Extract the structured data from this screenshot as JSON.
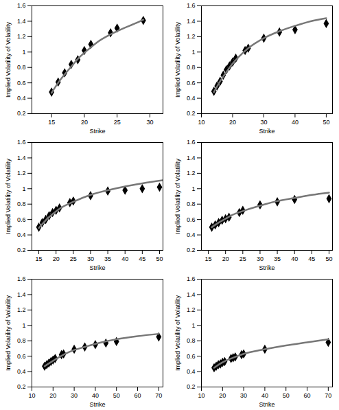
{
  "chart_data": [
    {
      "type": "scatter",
      "x_label": "Strike",
      "y_label": "Implied Volatility of Volatility",
      "xlim": [
        12,
        32
      ],
      "xticks": [
        15,
        20,
        25,
        30
      ],
      "ylim": [
        0.2,
        1.6
      ],
      "yticks": [
        0.2,
        0.4,
        0.6,
        0.8,
        1,
        1.2,
        1.4,
        1.6
      ],
      "series": [
        {
          "type": "scatter",
          "marker": "diamond",
          "color": "#000000",
          "x": [
            15,
            16,
            17,
            18,
            19,
            20,
            21,
            24,
            25,
            29
          ],
          "values": [
            0.48,
            0.61,
            0.73,
            0.84,
            0.9,
            1.02,
            1.1,
            1.25,
            1.31,
            1.41
          ]
        },
        {
          "type": "line",
          "line_style": "solid",
          "color": "#777777",
          "x": [
            15,
            16,
            17,
            18,
            19,
            20,
            21,
            22,
            24,
            26,
            28,
            29
          ],
          "values": [
            0.47,
            0.6,
            0.71,
            0.81,
            0.91,
            0.99,
            1.06,
            1.13,
            1.23,
            1.31,
            1.38,
            1.42
          ]
        }
      ]
    },
    {
      "type": "scatter",
      "x_label": "Strike",
      "y_label": "Implied Volatility of Volatility",
      "xlim": [
        10,
        52
      ],
      "xticks": [
        10,
        20,
        30,
        40,
        50
      ],
      "ylim": [
        0.2,
        1.6
      ],
      "yticks": [
        0.2,
        0.4,
        0.6,
        0.8,
        1,
        1.2,
        1.4,
        1.6
      ],
      "series": [
        {
          "type": "scatter",
          "marker": "diamond",
          "color": "#000000",
          "x": [
            14,
            15,
            16,
            17,
            18,
            19,
            20,
            21,
            24,
            25,
            30,
            35,
            40,
            50
          ],
          "values": [
            0.49,
            0.56,
            0.62,
            0.7,
            0.77,
            0.82,
            0.87,
            0.92,
            1.02,
            1.05,
            1.18,
            1.26,
            1.29,
            1.37
          ]
        },
        {
          "type": "line",
          "line_style": "solid",
          "color": "#777777",
          "x": [
            14,
            16,
            18,
            20,
            22,
            25,
            30,
            35,
            40,
            45,
            50
          ],
          "values": [
            0.48,
            0.62,
            0.74,
            0.85,
            0.94,
            1.05,
            1.18,
            1.27,
            1.34,
            1.4,
            1.44
          ]
        }
      ]
    },
    {
      "type": "scatter",
      "x_label": "Strike",
      "y_label": "Implied Volatility of Volatility",
      "xlim": [
        13,
        51
      ],
      "xticks": [
        15,
        20,
        25,
        30,
        35,
        40,
        45,
        50
      ],
      "ylim": [
        0.2,
        1.6
      ],
      "yticks": [
        0.2,
        0.4,
        0.6,
        0.8,
        1,
        1.2,
        1.4,
        1.6
      ],
      "series": [
        {
          "type": "scatter",
          "marker": "diamond",
          "color": "#000000",
          "x": [
            15,
            16,
            17,
            18,
            19,
            20,
            21,
            24,
            25,
            30,
            35,
            40,
            45,
            50
          ],
          "values": [
            0.5,
            0.56,
            0.6,
            0.65,
            0.69,
            0.72,
            0.75,
            0.82,
            0.84,
            0.91,
            0.97,
            0.98,
            1.0,
            1.02
          ]
        },
        {
          "type": "line",
          "line_style": "solid",
          "color": "#777777",
          "x": [
            15,
            17,
            19,
            21,
            25,
            30,
            35,
            40,
            45,
            51
          ],
          "values": [
            0.49,
            0.59,
            0.67,
            0.74,
            0.83,
            0.92,
            0.98,
            1.03,
            1.07,
            1.11
          ]
        }
      ]
    },
    {
      "type": "scatter",
      "x_label": "Strike",
      "y_label": "Implied Volatility of Volatility",
      "xlim": [
        13,
        51
      ],
      "xticks": [
        15,
        20,
        25,
        30,
        35,
        40,
        45,
        50
      ],
      "ylim": [
        0.2,
        1.6
      ],
      "yticks": [
        0.2,
        0.4,
        0.6,
        0.8,
        1,
        1.2,
        1.4,
        1.6
      ],
      "series": [
        {
          "type": "scatter",
          "marker": "diamond",
          "color": "#000000",
          "x": [
            16,
            17,
            18,
            19,
            20,
            21,
            24,
            25,
            30,
            35,
            40,
            50
          ],
          "values": [
            0.5,
            0.53,
            0.56,
            0.59,
            0.61,
            0.63,
            0.69,
            0.72,
            0.79,
            0.83,
            0.86,
            0.87
          ]
        },
        {
          "type": "line",
          "line_style": "solid",
          "color": "#777777",
          "x": [
            16,
            18,
            20,
            22,
            25,
            30,
            35,
            40,
            45,
            50
          ],
          "values": [
            0.5,
            0.56,
            0.61,
            0.66,
            0.71,
            0.78,
            0.84,
            0.88,
            0.92,
            0.95
          ]
        }
      ]
    },
    {
      "type": "scatter",
      "x_label": "Strike",
      "y_label": "Implied Volatility of Volatility",
      "xlim": [
        10,
        72
      ],
      "xticks": [
        10,
        20,
        30,
        40,
        50,
        60,
        70
      ],
      "ylim": [
        0.2,
        1.6
      ],
      "yticks": [
        0.2,
        0.4,
        0.6,
        0.8,
        1,
        1.2,
        1.4,
        1.6
      ],
      "series": [
        {
          "type": "scatter",
          "marker": "diamond",
          "color": "#000000",
          "x": [
            16,
            17,
            18,
            19,
            20,
            21,
            24,
            25,
            30,
            35,
            40,
            45,
            50,
            70
          ],
          "values": [
            0.47,
            0.49,
            0.51,
            0.53,
            0.55,
            0.57,
            0.62,
            0.63,
            0.69,
            0.72,
            0.75,
            0.77,
            0.79,
            0.85
          ]
        },
        {
          "type": "line",
          "line_style": "solid",
          "color": "#777777",
          "x": [
            16,
            20,
            25,
            30,
            35,
            40,
            50,
            60,
            70
          ],
          "values": [
            0.47,
            0.54,
            0.62,
            0.68,
            0.72,
            0.76,
            0.82,
            0.86,
            0.89
          ]
        }
      ]
    },
    {
      "type": "scatter",
      "x_label": "Strike",
      "y_label": "Implied Volatility of Volatility",
      "xlim": [
        10,
        72
      ],
      "xticks": [
        10,
        20,
        30,
        40,
        50,
        60,
        70
      ],
      "ylim": [
        0.2,
        1.6
      ],
      "yticks": [
        0.2,
        0.4,
        0.6,
        0.8,
        1,
        1.2,
        1.4,
        1.6
      ],
      "series": [
        {
          "type": "scatter",
          "marker": "diamond",
          "color": "#000000",
          "x": [
            16,
            17,
            18,
            19,
            20,
            21,
            24,
            25,
            26,
            29,
            30,
            40,
            70
          ],
          "values": [
            0.45,
            0.47,
            0.49,
            0.5,
            0.52,
            0.53,
            0.57,
            0.58,
            0.59,
            0.62,
            0.63,
            0.69,
            0.78
          ]
        },
        {
          "type": "line",
          "line_style": "solid",
          "color": "#777777",
          "x": [
            16,
            20,
            25,
            30,
            40,
            50,
            60,
            70
          ],
          "values": [
            0.45,
            0.52,
            0.58,
            0.63,
            0.69,
            0.74,
            0.78,
            0.82
          ]
        }
      ]
    }
  ]
}
